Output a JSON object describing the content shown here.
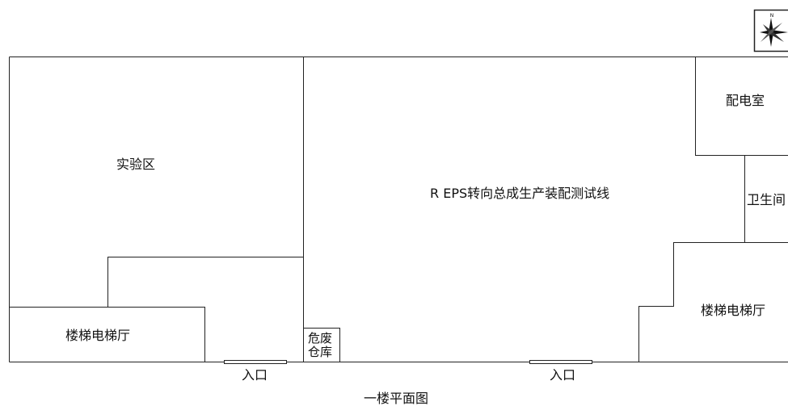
{
  "rooms": {
    "experiment_area": "实验区",
    "eps_line": "R EPS转向总成生产装配测试线",
    "power_room": "配电室",
    "restroom": "卫生间",
    "stair_hall_left": "楼梯电梯厅",
    "stair_hall_right": "楼梯电梯厅",
    "hazwaste_line1": "危废",
    "hazwaste_line2": "仓库"
  },
  "entrances": {
    "left": "入口",
    "right": "入口"
  },
  "title": "一楼平面图",
  "compass": {
    "north_label": "N",
    "icon": "compass-rose-icon"
  }
}
